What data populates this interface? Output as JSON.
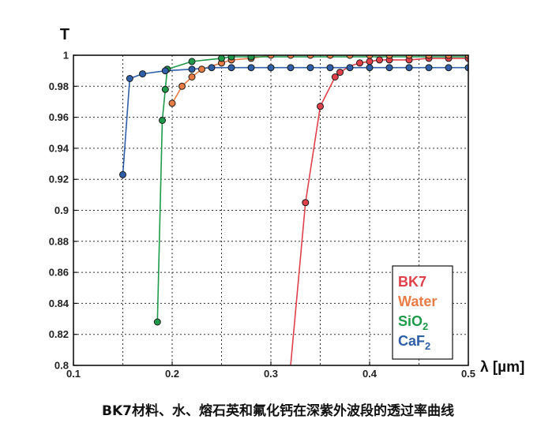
{
  "caption": "BK7材料、水、熔石英和氟化钙在深紫外波段的透过率曲线",
  "chart_data": {
    "type": "line",
    "ylabel": "T",
    "xlabel": "λ [µm]",
    "xlim": [
      0.1,
      0.5
    ],
    "ylim": [
      0.8,
      1.0
    ],
    "xticks": [
      0.1,
      0.2,
      0.3,
      0.4,
      0.5
    ],
    "yticks": [
      0.8,
      0.82,
      0.84,
      0.86,
      0.88,
      0.9,
      0.92,
      0.94,
      0.96,
      0.98,
      1.0
    ],
    "xtick_labels": [
      "0.1",
      "0.2",
      "0.3",
      "0.4",
      "0.5"
    ],
    "ytick_labels": [
      "0.8",
      "0.82",
      "0.84",
      "0.86",
      "0.88",
      "0.9",
      "0.92",
      "0.94",
      "0.96",
      "0.98",
      "1"
    ],
    "grid": true,
    "legend_position": "bottom-right",
    "series": [
      {
        "name": "BK7",
        "color": "#e0404a",
        "line": [
          [
            0.32,
            0.8
          ],
          [
            0.335,
            0.905
          ],
          [
            0.35,
            0.967
          ],
          [
            0.365,
            0.986
          ],
          [
            0.37,
            0.989
          ],
          [
            0.38,
            0.993
          ],
          [
            0.39,
            0.995
          ],
          [
            0.4,
            0.996
          ],
          [
            0.41,
            0.997
          ],
          [
            0.42,
            0.997
          ],
          [
            0.44,
            0.997
          ],
          [
            0.46,
            0.998
          ],
          [
            0.48,
            0.998
          ],
          [
            0.5,
            0.998
          ]
        ],
        "points": [
          [
            0.335,
            0.905
          ],
          [
            0.35,
            0.967
          ],
          [
            0.365,
            0.986
          ],
          [
            0.37,
            0.989
          ],
          [
            0.39,
            0.995
          ],
          [
            0.4,
            0.996
          ],
          [
            0.41,
            0.997
          ],
          [
            0.42,
            0.997
          ],
          [
            0.44,
            0.997
          ],
          [
            0.46,
            0.998
          ],
          [
            0.48,
            0.998
          ],
          [
            0.5,
            0.998
          ]
        ]
      },
      {
        "name": "Water",
        "color": "#e87c45",
        "line": [
          [
            0.2,
            0.969
          ],
          [
            0.21,
            0.98
          ],
          [
            0.22,
            0.986
          ],
          [
            0.23,
            0.991
          ],
          [
            0.25,
            0.995
          ],
          [
            0.26,
            0.997
          ],
          [
            0.28,
            0.998
          ],
          [
            0.3,
            1.0
          ],
          [
            0.32,
            1.0
          ],
          [
            0.34,
            1.0
          ],
          [
            0.36,
            1.0
          ],
          [
            0.38,
            1.0
          ],
          [
            0.4,
            1.0
          ],
          [
            0.42,
            1.0
          ],
          [
            0.44,
            1.0
          ],
          [
            0.46,
            1.0
          ],
          [
            0.48,
            1.0
          ],
          [
            0.5,
            1.0
          ]
        ],
        "points": [
          [
            0.2,
            0.969
          ],
          [
            0.21,
            0.98
          ],
          [
            0.22,
            0.986
          ],
          [
            0.23,
            0.991
          ],
          [
            0.25,
            0.995
          ],
          [
            0.26,
            0.997
          ],
          [
            0.28,
            0.998
          ],
          [
            0.3,
            1.0
          ],
          [
            0.32,
            1.0
          ],
          [
            0.34,
            1.0
          ],
          [
            0.36,
            1.0
          ],
          [
            0.38,
            1.0
          ],
          [
            0.4,
            1.0
          ],
          [
            0.42,
            1.0
          ],
          [
            0.44,
            1.0
          ],
          [
            0.46,
            1.0
          ],
          [
            0.48,
            1.0
          ],
          [
            0.5,
            1.0
          ]
        ]
      },
      {
        "name": "SiO2",
        "color": "#1e9a4a",
        "line": [
          [
            0.185,
            0.828
          ],
          [
            0.19,
            0.958
          ],
          [
            0.193,
            0.978
          ],
          [
            0.195,
            0.991
          ],
          [
            0.2,
            0.992
          ],
          [
            0.22,
            0.996
          ],
          [
            0.25,
            0.998
          ],
          [
            0.26,
            0.999
          ],
          [
            0.28,
            0.999
          ],
          [
            0.3,
            0.999
          ],
          [
            0.32,
            0.999
          ],
          [
            0.35,
            0.999
          ],
          [
            0.4,
            0.999
          ],
          [
            0.45,
            0.999
          ],
          [
            0.5,
            0.999
          ]
        ],
        "points": [
          [
            0.185,
            0.828
          ],
          [
            0.19,
            0.958
          ],
          [
            0.193,
            0.978
          ],
          [
            0.195,
            0.991
          ],
          [
            0.22,
            0.996
          ],
          [
            0.25,
            0.998
          ],
          [
            0.26,
            0.999
          ],
          [
            0.28,
            0.999
          ]
        ]
      },
      {
        "name": "CaF2",
        "color": "#2e5fa8",
        "line": [
          [
            0.15,
            0.923
          ],
          [
            0.157,
            0.985
          ],
          [
            0.17,
            0.988
          ],
          [
            0.193,
            0.99
          ],
          [
            0.22,
            0.991
          ],
          [
            0.24,
            0.992
          ],
          [
            0.26,
            0.992
          ],
          [
            0.28,
            0.992
          ],
          [
            0.3,
            0.992
          ],
          [
            0.32,
            0.992
          ],
          [
            0.34,
            0.992
          ],
          [
            0.36,
            0.992
          ],
          [
            0.38,
            0.992
          ],
          [
            0.4,
            0.992
          ],
          [
            0.42,
            0.992
          ],
          [
            0.44,
            0.992
          ],
          [
            0.46,
            0.992
          ],
          [
            0.48,
            0.992
          ],
          [
            0.5,
            0.992
          ]
        ],
        "points": [
          [
            0.15,
            0.923
          ],
          [
            0.157,
            0.985
          ],
          [
            0.17,
            0.988
          ],
          [
            0.193,
            0.99
          ],
          [
            0.22,
            0.991
          ],
          [
            0.24,
            0.992
          ],
          [
            0.26,
            0.992
          ],
          [
            0.28,
            0.992
          ],
          [
            0.3,
            0.992
          ],
          [
            0.32,
            0.992
          ],
          [
            0.34,
            0.992
          ],
          [
            0.36,
            0.992
          ],
          [
            0.38,
            0.992
          ],
          [
            0.4,
            0.992
          ],
          [
            0.42,
            0.992
          ],
          [
            0.44,
            0.992
          ],
          [
            0.46,
            0.992
          ],
          [
            0.48,
            0.992
          ],
          [
            0.5,
            0.992
          ]
        ]
      }
    ]
  }
}
